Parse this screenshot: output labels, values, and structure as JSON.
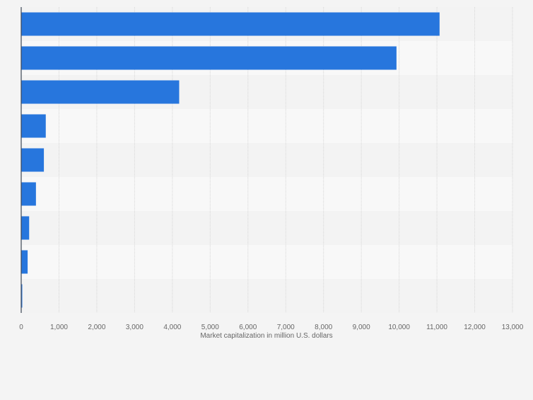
{
  "chart_data": {
    "type": "bar",
    "orientation": "horizontal",
    "categories": [
      "",
      "",
      "",
      "",
      "",
      "",
      "",
      "",
      ""
    ],
    "values": [
      11070,
      9930,
      4180,
      650,
      600,
      390,
      210,
      170,
      20
    ],
    "title": "",
    "xlabel": "Market capitalization in million U.S. dollars",
    "ylabel": "",
    "xlim": [
      0,
      13000
    ],
    "xticks": [
      0,
      1000,
      2000,
      3000,
      4000,
      5000,
      6000,
      7000,
      8000,
      9000,
      10000,
      11000,
      12000,
      13000
    ],
    "xtick_labels": [
      "0",
      "1,000",
      "2,000",
      "3,000",
      "4,000",
      "5,000",
      "6,000",
      "7,000",
      "8,000",
      "9,000",
      "10,000",
      "11,000",
      "12,000",
      "13,000"
    ],
    "grid": true,
    "legend": "none",
    "colors": {
      "bar": "#2776dd",
      "background": "#f4f4f4",
      "band_light": "#f8f8f8",
      "band_dark": "#f3f3f3",
      "grid": "#d6d6d6",
      "axis": "#3c4656",
      "tick_text": "#666666"
    }
  }
}
